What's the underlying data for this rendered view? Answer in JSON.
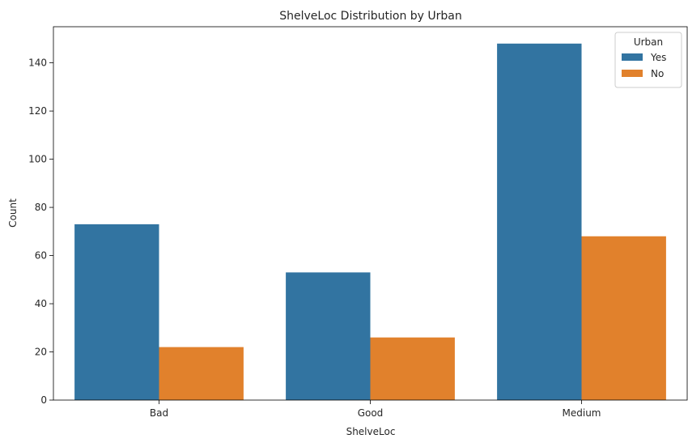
{
  "chart_data": {
    "type": "bar",
    "title": "ShelveLoc Distribution by Urban",
    "xlabel": "ShelveLoc",
    "ylabel": "Count",
    "categories": [
      "Bad",
      "Good",
      "Medium"
    ],
    "series": [
      {
        "name": "Yes",
        "values": [
          73,
          53,
          148
        ],
        "color": "#3274a1"
      },
      {
        "name": "No",
        "values": [
          22,
          26,
          68
        ],
        "color": "#e1812c"
      }
    ],
    "ylim": [
      0,
      155
    ],
    "yticks": [
      0,
      20,
      40,
      60,
      80,
      100,
      120,
      140
    ],
    "grid": false,
    "legend": {
      "title": "Urban",
      "placement": "top-right"
    }
  }
}
